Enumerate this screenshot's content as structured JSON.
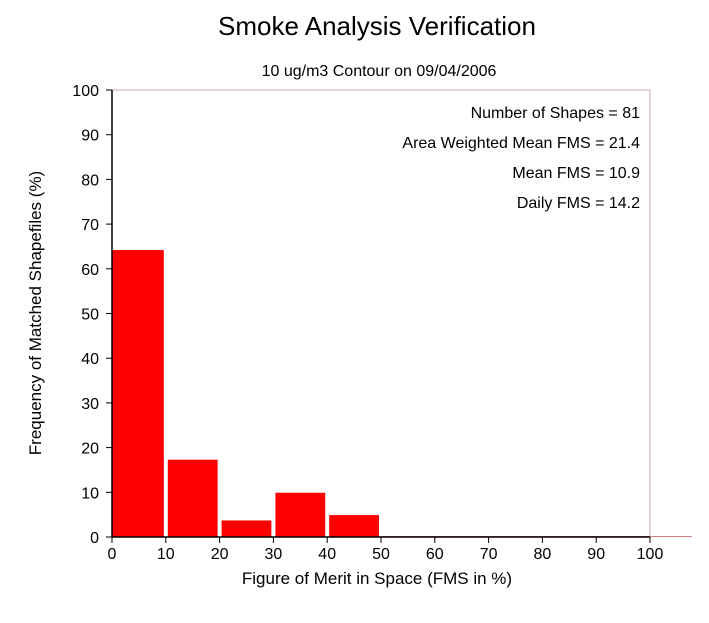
{
  "colors": {
    "bar": "#ff0000",
    "axis": "#000000",
    "frame": "#c9a9a9",
    "baseline": "#d08080"
  },
  "chart_data": {
    "type": "bar",
    "title": "Smoke Analysis Verification",
    "subtitle": "10 ug/m3 Contour on 09/04/2006",
    "xlabel": "Figure of Merit in Space (FMS in %)",
    "ylabel": "Frequency of Matched Shapefiles (%)",
    "xlim": [
      0,
      110
    ],
    "ylim": [
      0,
      100
    ],
    "x_ticks": [
      0,
      10,
      20,
      30,
      40,
      50,
      60,
      70,
      80,
      90,
      100
    ],
    "y_ticks": [
      0,
      10,
      20,
      30,
      40,
      50,
      60,
      70,
      80,
      90,
      100
    ],
    "bin_width": 10,
    "bins": [
      0,
      10,
      20,
      30,
      40,
      50,
      60,
      70,
      80,
      90,
      100
    ],
    "values": [
      64.2,
      17.3,
      3.7,
      9.9,
      4.9,
      0,
      0,
      0,
      0,
      0,
      0
    ],
    "grid": false,
    "annotations": [
      "Number of Shapes = 81",
      "Area Weighted Mean FMS = 21.4",
      "Mean FMS = 10.9",
      "Daily FMS = 14.2"
    ]
  }
}
